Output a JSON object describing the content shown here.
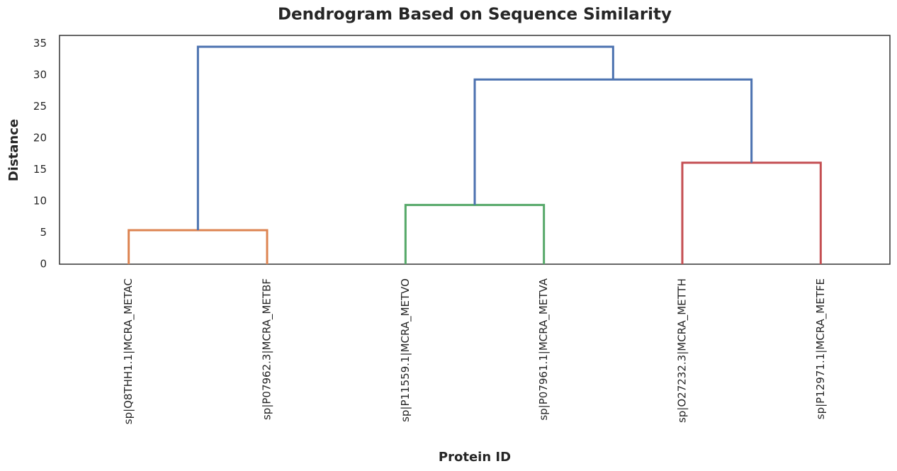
{
  "chart_data": {
    "type": "dendrogram",
    "title": "Dendrogram Based on Sequence Similarity",
    "x_label": "Protein ID",
    "y_label": "Distance",
    "categories": [
      "sp|Q8THH1.1|MCRA_METAC",
      "sp|P07962.3|MCRA_METBF",
      "sp|P11559.1|MCRA_METVO",
      "sp|P07961.1|MCRA_METVA",
      "sp|O27232.3|MCRA_METTH",
      "sp|P12971.1|MCRA_METFE"
    ],
    "merges": [
      {
        "left": 0,
        "right": 1,
        "height": 5.4,
        "color": "#dd8452"
      },
      {
        "left": 2,
        "right": 3,
        "height": 9.4,
        "color": "#55a868"
      },
      {
        "left": 4,
        "right": 5,
        "height": 16.1,
        "color": "#c44e52"
      },
      {
        "left": 7,
        "right": 8,
        "height": 29.3,
        "color": "#4c72b0"
      },
      {
        "left": 6,
        "right": 9,
        "height": 34.5,
        "color": "#4c72b0"
      }
    ],
    "ylim": [
      0,
      36.3
    ],
    "yticks": [
      0,
      5,
      10,
      15,
      20,
      25,
      30,
      35
    ]
  }
}
